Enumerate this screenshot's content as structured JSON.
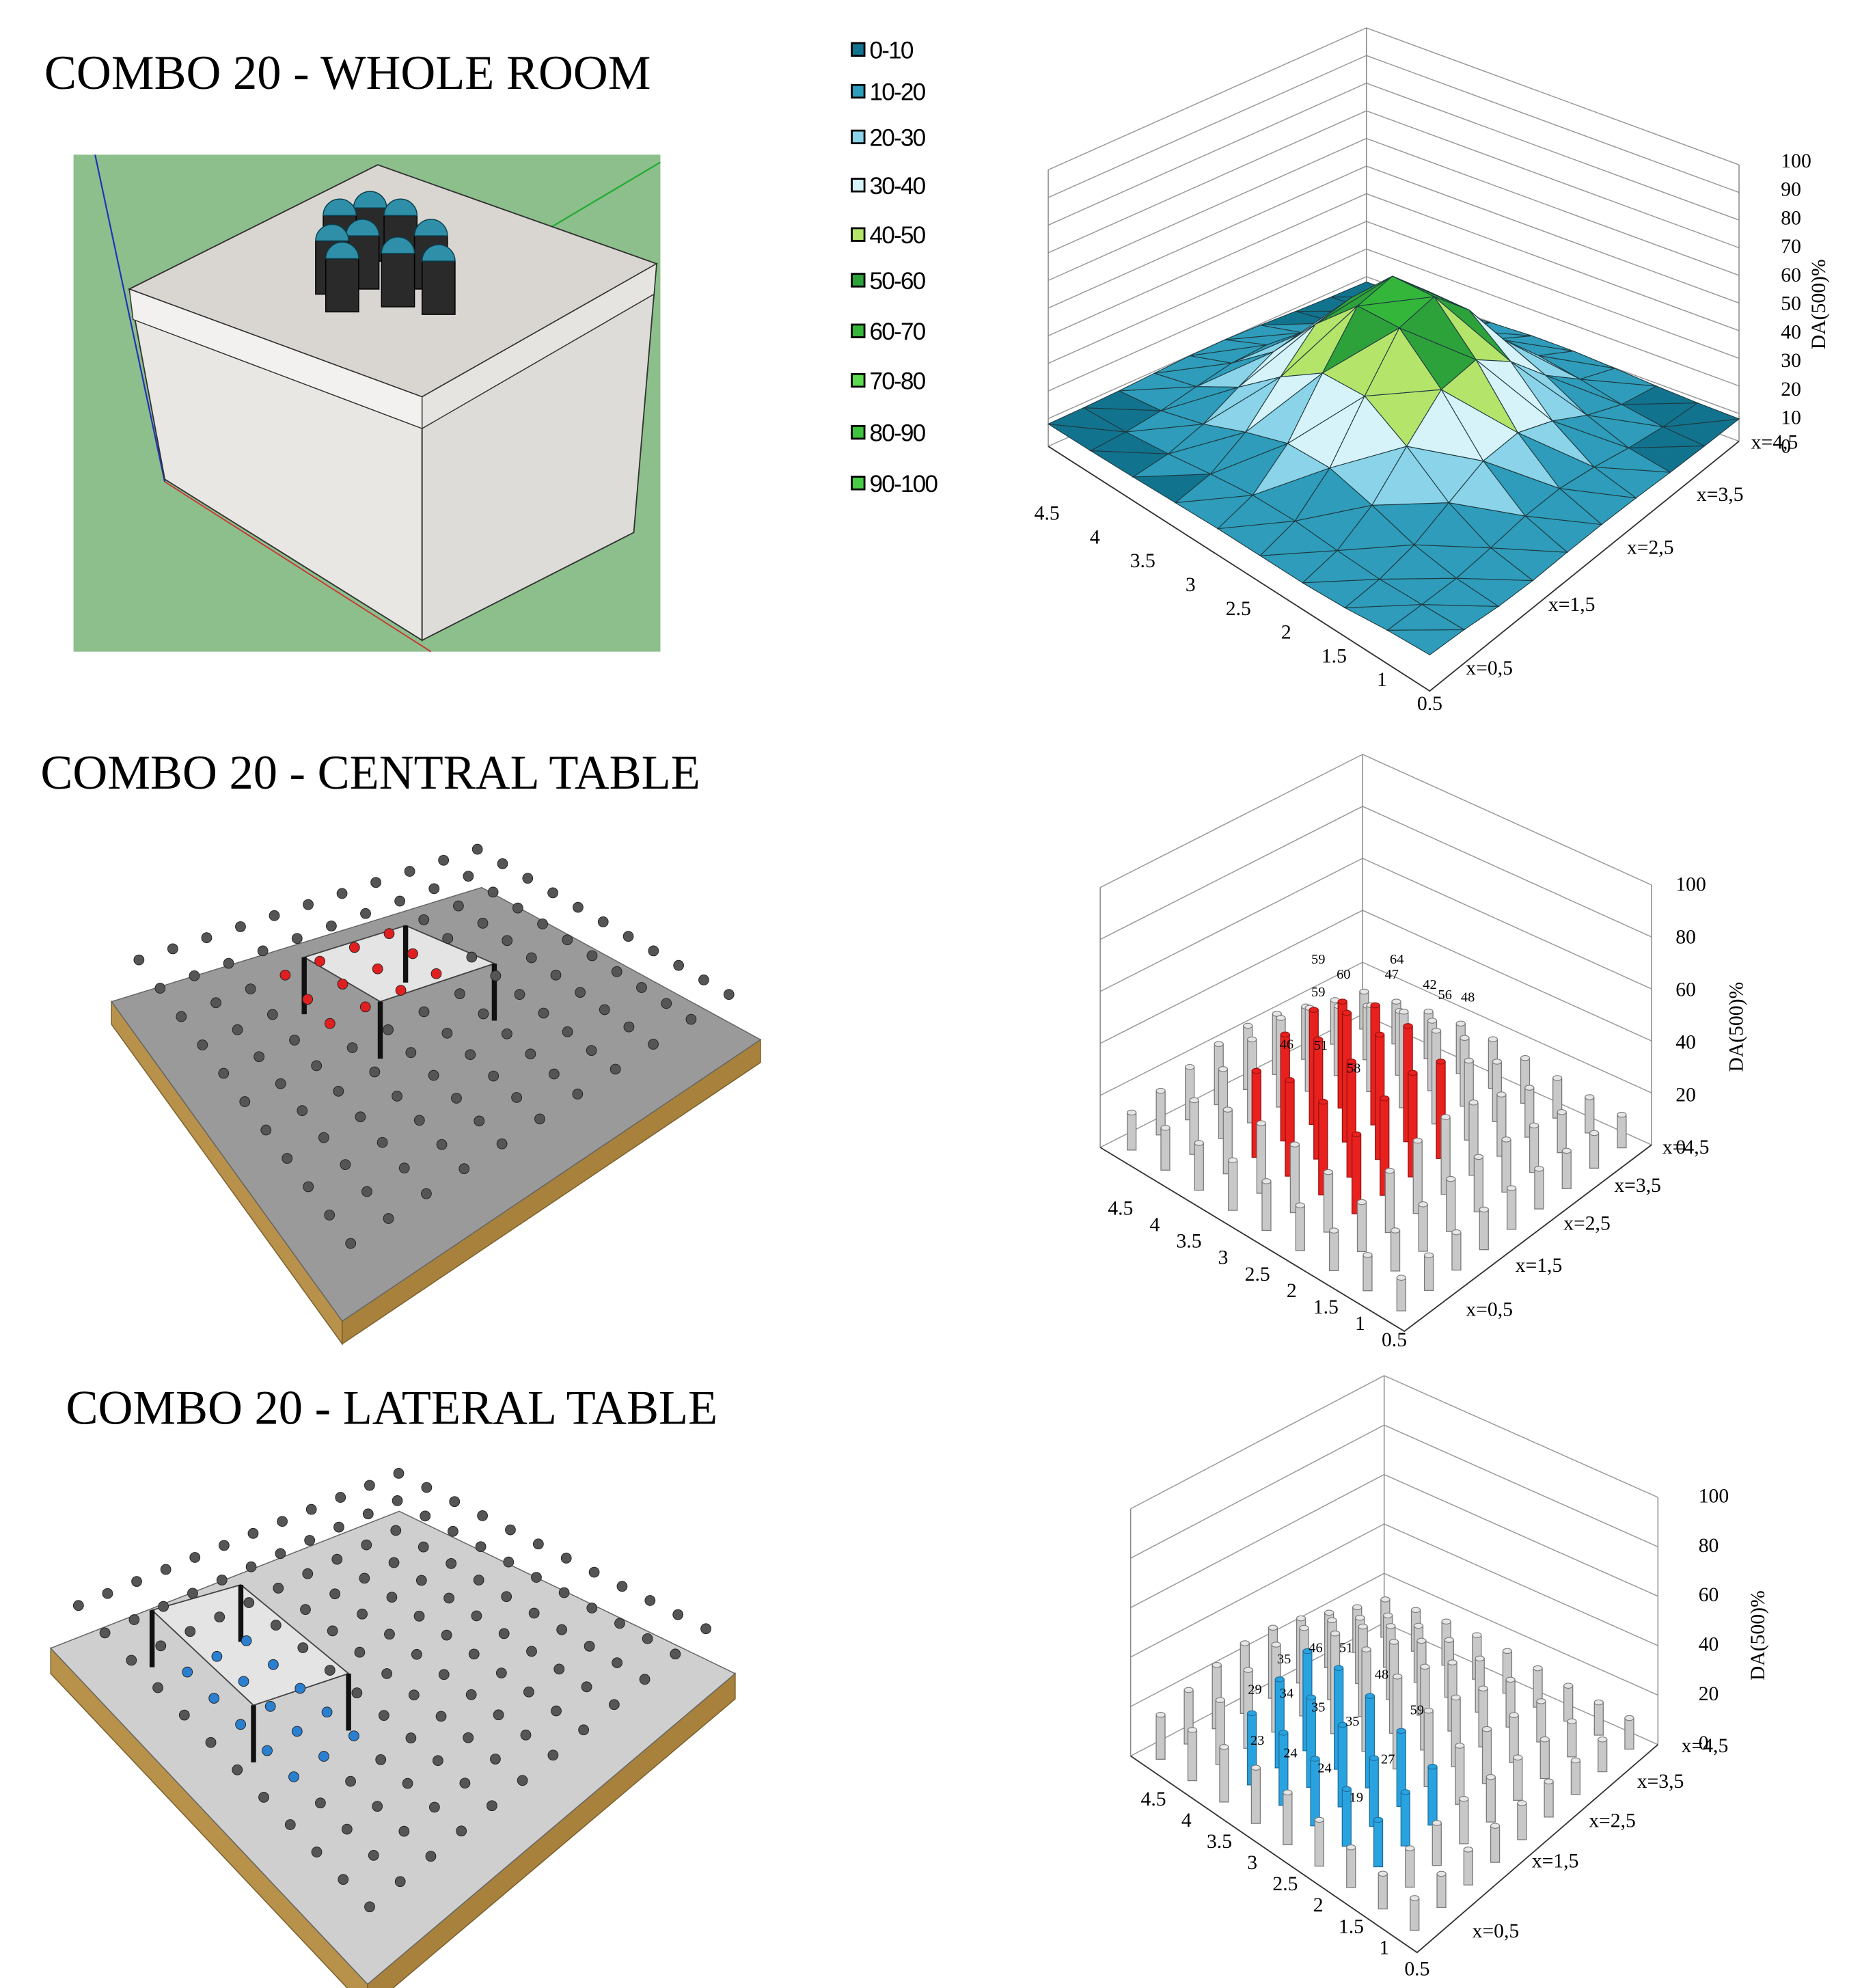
{
  "panels": [
    {
      "title": "COMBO 20 - WHOLE ROOM",
      "chart": {
        "legend": [
          "0-10",
          "10-20",
          "20-30",
          "30-40",
          "40-50",
          "50-60",
          "60-70",
          "70-80",
          "80-90",
          "90-100"
        ],
        "z_label": "DA(500)%",
        "z_ticks": [
          "0",
          "10",
          "20",
          "30",
          "40",
          "50",
          "60",
          "70",
          "80",
          "90",
          "100"
        ],
        "y_ticks": [
          "4.5",
          "4",
          "3.5",
          "3",
          "2.5",
          "2",
          "1.5",
          "1",
          "0.5"
        ],
        "x_ticks": [
          "x=0,5",
          "x=1,5",
          "x=2,5",
          "x=3,5",
          "x=4,5"
        ]
      }
    },
    {
      "title": "COMBO 20 - CENTRAL TABLE",
      "chart": {
        "z_label": "DA(500)%",
        "z_ticks": [
          "0",
          "20",
          "40",
          "60",
          "80",
          "100"
        ],
        "y_ticks": [
          "4.5",
          "4",
          "3.5",
          "3",
          "2.5",
          "2",
          "1.5",
          "1",
          "0.5"
        ],
        "x_ticks": [
          "x=0,5",
          "x=1,5",
          "x=2,5",
          "x=3,5",
          "x=4,5"
        ],
        "labels": [
          "59",
          "64",
          "60",
          "47",
          "42",
          "56",
          "48",
          "59",
          "46",
          "51",
          "58"
        ]
      }
    },
    {
      "title": "COMBO 20 - LATERAL TABLE",
      "chart": {
        "z_label": "DA(500)%",
        "z_ticks": [
          "0",
          "20",
          "40",
          "60",
          "80",
          "100"
        ],
        "y_ticks": [
          "4.5",
          "4",
          "3.5",
          "3",
          "2.5",
          "2",
          "1.5",
          "1",
          "0.5"
        ],
        "x_ticks": [
          "x=0,5",
          "x=1,5",
          "x=2,5",
          "x=3,5",
          "x=4,5"
        ],
        "labels": [
          "35",
          "46",
          "51",
          "48",
          "29",
          "34",
          "35",
          "35",
          "59",
          "23",
          "24",
          "24",
          "27",
          "19"
        ]
      }
    }
  ]
}
